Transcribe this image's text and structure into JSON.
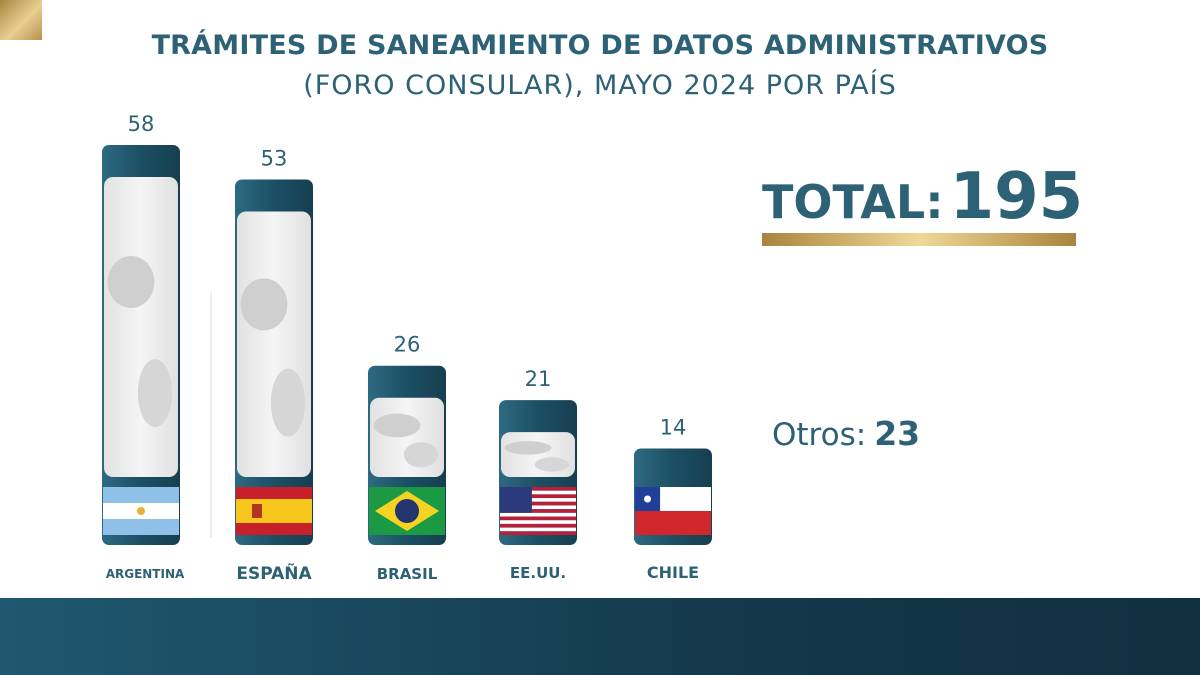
{
  "header": {
    "title_line1": "TRÁMITES DE SANEAMIENTO DE DATOS ADMINISTRATIVOS",
    "title_line2": "(FORO CONSULAR), MAYO 2024 POR PAÍS"
  },
  "summary": {
    "total_label": "TOTAL:",
    "total_value": "195",
    "others_label": "Otros:",
    "others_value": "23"
  },
  "colors": {
    "primary": "#2d6176",
    "bar_dark": "#1f5870",
    "gold": "#c9a35a",
    "map_gray": "#cfcfcf"
  },
  "chart_data": {
    "type": "bar",
    "title": "TRÁMITES DE SANEAMIENTO DE DATOS ADMINISTRATIVOS (FORO CONSULAR), MAYO 2024 POR PAÍS",
    "categories": [
      "ARGENTINA",
      "ESPAÑA",
      "BRASIL",
      "EE.UU.",
      "CHILE"
    ],
    "values": [
      58,
      53,
      26,
      21,
      14
    ],
    "flags": [
      "argentina-flag-icon",
      "spain-flag-icon",
      "brazil-flag-icon",
      "usa-flag-icon",
      "chile-flag-icon"
    ],
    "xlabel": "",
    "ylabel": "",
    "grid": false,
    "legend": "none"
  }
}
